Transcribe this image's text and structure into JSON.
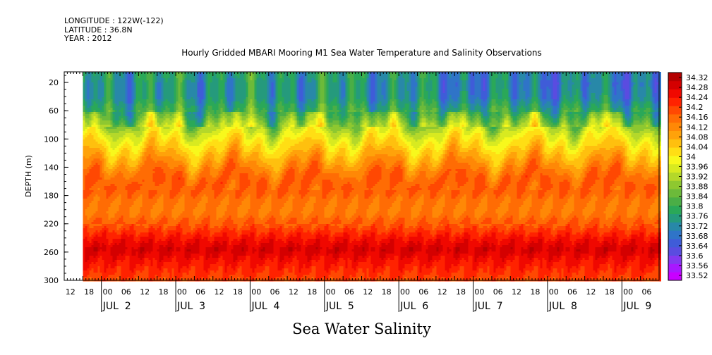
{
  "header": {
    "longitude": "LONGITUDE : 122W(-122)",
    "latitude": "LATITUDE : 36.8N",
    "year": "YEAR : 2012"
  },
  "title": "Hourly Gridded MBARI Mooring M1 Sea Water Temperature and Salinity Observations",
  "bottom_title": "Sea Water Salinity",
  "chart_data": {
    "type": "heatmap",
    "title": "Hourly Gridded MBARI Mooring M1 Sea Water Temperature and Salinity Observations",
    "subtitle": "Sea Water Salinity",
    "ylabel": "DEPTH (m)",
    "xlabel": "",
    "x_range": [
      "2012-07-01T12:00",
      "2012-07-09T12:00"
    ],
    "data_start": "2012-07-01T18:00",
    "y_range": [
      300,
      5
    ],
    "y_ticks": [
      20,
      60,
      100,
      140,
      180,
      220,
      260,
      300
    ],
    "x_hour_labels": [
      "12",
      "18",
      "00",
      "06",
      "12",
      "18",
      "00",
      "06",
      "12",
      "18",
      "00",
      "06",
      "12",
      "18",
      "00",
      "06",
      "12",
      "18",
      "00",
      "06",
      "12",
      "18",
      "00",
      "06",
      "12",
      "18",
      "00",
      "06",
      "12",
      "18",
      "00",
      "06"
    ],
    "x_day_labels": [
      "JUL  2",
      "JUL  3",
      "JUL  4",
      "JUL  5",
      "JUL  6",
      "JUL  7",
      "JUL  8",
      "JUL  9"
    ],
    "colorbar_labels": [
      "34.32",
      "34.28",
      "34.24",
      "34.2",
      "34.16",
      "34.12",
      "34.08",
      "34.04",
      "34",
      "33.96",
      "33.92",
      "33.88",
      "33.84",
      "33.8",
      "33.76",
      "33.72",
      "33.68",
      "33.64",
      "33.6",
      "33.56",
      "33.52"
    ],
    "colorbar_range": [
      33.52,
      34.34
    ],
    "colorbar_colors": [
      "#c800ff",
      "#a818ff",
      "#8438f0",
      "#5a4ce0",
      "#3f5cd8",
      "#2f74c8",
      "#2888a8",
      "#259a7c",
      "#2aa858",
      "#4aae46",
      "#6cba3a",
      "#8ec830",
      "#b4d82a",
      "#d8ea20",
      "#f8f81c",
      "#ffde14",
      "#ffc00e",
      "#ffa20a",
      "#ff8806",
      "#ff6c04",
      "#ff4802",
      "#ff2200",
      "#f00800",
      "#d40000",
      "#b40000"
    ],
    "depth_profile": [
      {
        "depth": 10,
        "salinity": 33.78
      },
      {
        "depth": 20,
        "salinity": 33.76
      },
      {
        "depth": 40,
        "salinity": 33.76
      },
      {
        "depth": 60,
        "salinity": 33.82
      },
      {
        "depth": 80,
        "salinity": 33.93
      },
      {
        "depth": 100,
        "salinity": 34.01
      },
      {
        "depth": 120,
        "salinity": 34.07
      },
      {
        "depth": 140,
        "salinity": 34.14
      },
      {
        "depth": 160,
        "salinity": 34.19
      },
      {
        "depth": 180,
        "salinity": 34.16
      },
      {
        "depth": 200,
        "salinity": 34.14
      },
      {
        "depth": 220,
        "salinity": 34.18
      },
      {
        "depth": 240,
        "salinity": 34.25
      },
      {
        "depth": 255,
        "salinity": 34.29
      },
      {
        "depth": 270,
        "salinity": 34.25
      },
      {
        "depth": 285,
        "salinity": 34.22
      },
      {
        "depth": 300,
        "salinity": 34.19
      }
    ],
    "grid": false,
    "legend": "right colorbar"
  }
}
